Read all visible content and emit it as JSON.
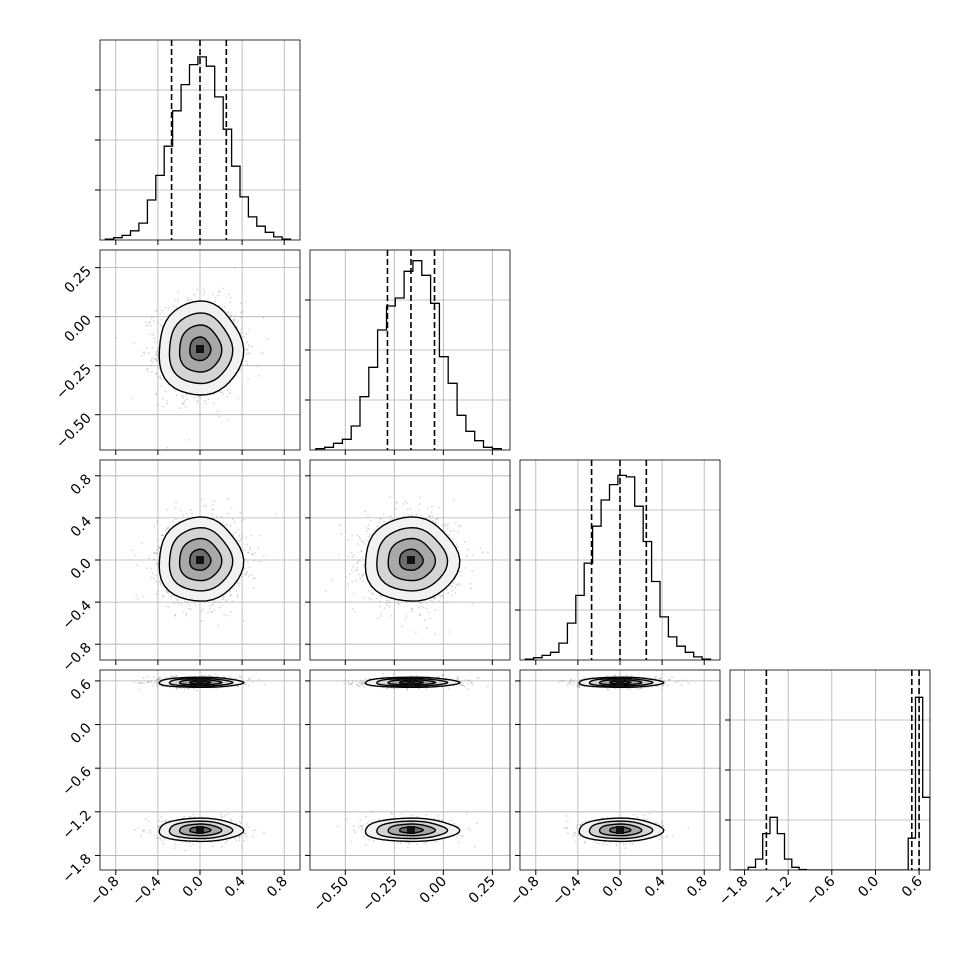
{
  "chart_data": {
    "type": "corner",
    "dimensions": 4,
    "colors": {
      "line": "#000000",
      "grid": "#b0b0b0",
      "points": "#8c8c8c"
    },
    "grid": true,
    "axes": [
      {
        "range": [
          -0.95,
          0.95
        ],
        "ticks": [
          -0.8,
          -0.4,
          0.0,
          0.4,
          0.8
        ],
        "tick_labels": [
          "−0.8",
          "−0.4",
          "0.0",
          "0.4",
          "0.8"
        ]
      },
      {
        "range": [
          -0.68,
          0.34
        ],
        "ticks": [
          -0.5,
          -0.25,
          0.0,
          0.25
        ],
        "tick_labels": [
          "−0.50",
          "−0.25",
          "0.00",
          "0.25"
        ]
      },
      {
        "range": [
          -0.95,
          0.95
        ],
        "ticks": [
          -0.8,
          -0.4,
          0.0,
          0.4,
          0.8
        ],
        "tick_labels": [
          "−0.8",
          "−0.4",
          "0.0",
          "0.4",
          "0.8"
        ]
      },
      {
        "range": [
          -2.0,
          0.75
        ],
        "ticks": [
          -1.8,
          -1.2,
          -0.6,
          0.0,
          0.6
        ],
        "tick_labels": [
          "−1.8",
          "−1.2",
          "−0.6",
          "0.0",
          "0.6"
        ]
      }
    ],
    "histograms": [
      {
        "bins": [
          -0.9,
          -0.82,
          -0.74,
          -0.66,
          -0.58,
          -0.5,
          -0.42,
          -0.34,
          -0.26,
          -0.18,
          -0.1,
          -0.02,
          0.06,
          0.14,
          0.22,
          0.3,
          0.38,
          0.46,
          0.54,
          0.62,
          0.7,
          0.78,
          0.86
        ],
        "counts": [
          0.5,
          1.5,
          3,
          6,
          11,
          26,
          42,
          61,
          84,
          101,
          114,
          119,
          113,
          93,
          72,
          48,
          28,
          15,
          9,
          5,
          2,
          0.5
        ],
        "quantiles": [
          -0.27,
          0.0,
          0.25
        ],
        "ylim": [
          0,
          130
        ]
      },
      {
        "bins": [
          -0.65,
          -0.605,
          -0.56,
          -0.515,
          -0.47,
          -0.425,
          -0.38,
          -0.335,
          -0.29,
          -0.245,
          -0.2,
          -0.155,
          -0.11,
          -0.065,
          -0.02,
          0.025,
          0.07,
          0.115,
          0.16,
          0.205,
          0.25,
          0.295
        ],
        "counts": [
          1,
          2,
          5,
          8,
          18,
          40,
          62,
          90,
          108,
          114,
          134,
          142,
          131,
          110,
          70,
          50,
          26,
          14,
          7,
          2,
          1
        ],
        "quantiles": [
          -0.285,
          -0.165,
          -0.045
        ],
        "ylim": [
          0,
          150
        ]
      },
      {
        "bins": [
          -0.9,
          -0.82,
          -0.74,
          -0.66,
          -0.58,
          -0.5,
          -0.42,
          -0.34,
          -0.26,
          -0.18,
          -0.1,
          -0.02,
          0.06,
          0.14,
          0.22,
          0.3,
          0.38,
          0.46,
          0.54,
          0.62,
          0.7,
          0.78,
          0.86
        ],
        "counts": [
          0.5,
          1.5,
          3,
          5,
          11,
          24,
          42,
          63,
          87,
          104,
          114,
          120,
          119,
          100,
          77,
          51,
          28,
          15,
          9,
          5,
          2,
          0.5
        ],
        "quantiles": [
          -0.27,
          0.0,
          0.25
        ],
        "ylim": [
          0,
          130
        ]
      },
      {
        "bins": [
          -1.95,
          -1.85,
          -1.75,
          -1.65,
          -1.55,
          -1.45,
          -1.35,
          -1.25,
          -1.15,
          -1.05,
          -0.95,
          -0.85,
          -0.75,
          -0.65,
          -0.55,
          -0.45,
          -0.35,
          -0.25,
          -0.15,
          -0.05,
          0.05,
          0.15,
          0.25,
          0.35,
          0.45,
          0.55,
          0.65,
          0.75
        ],
        "counts": [
          0,
          0,
          3,
          12,
          40,
          58,
          40,
          12,
          3,
          0.5,
          0,
          0,
          0,
          0,
          0,
          0,
          0,
          0,
          0,
          0,
          0,
          0,
          0,
          0,
          35,
          190,
          80
        ],
        "quantiles": [
          -1.5,
          0.5,
          0.6
        ],
        "ylim": [
          0,
          220
        ]
      }
    ],
    "clusters": {
      "0": [
        {
          "mean": 0.0,
          "sd": 0.2
        }
      ],
      "1": [
        {
          "mean": -0.165,
          "sd": 0.12
        }
      ],
      "2": [
        {
          "mean": 0.0,
          "sd": 0.2
        }
      ],
      "3": [
        {
          "mean": 0.58,
          "sd": 0.035
        },
        {
          "mean": -1.45,
          "sd": 0.08
        }
      ]
    }
  }
}
